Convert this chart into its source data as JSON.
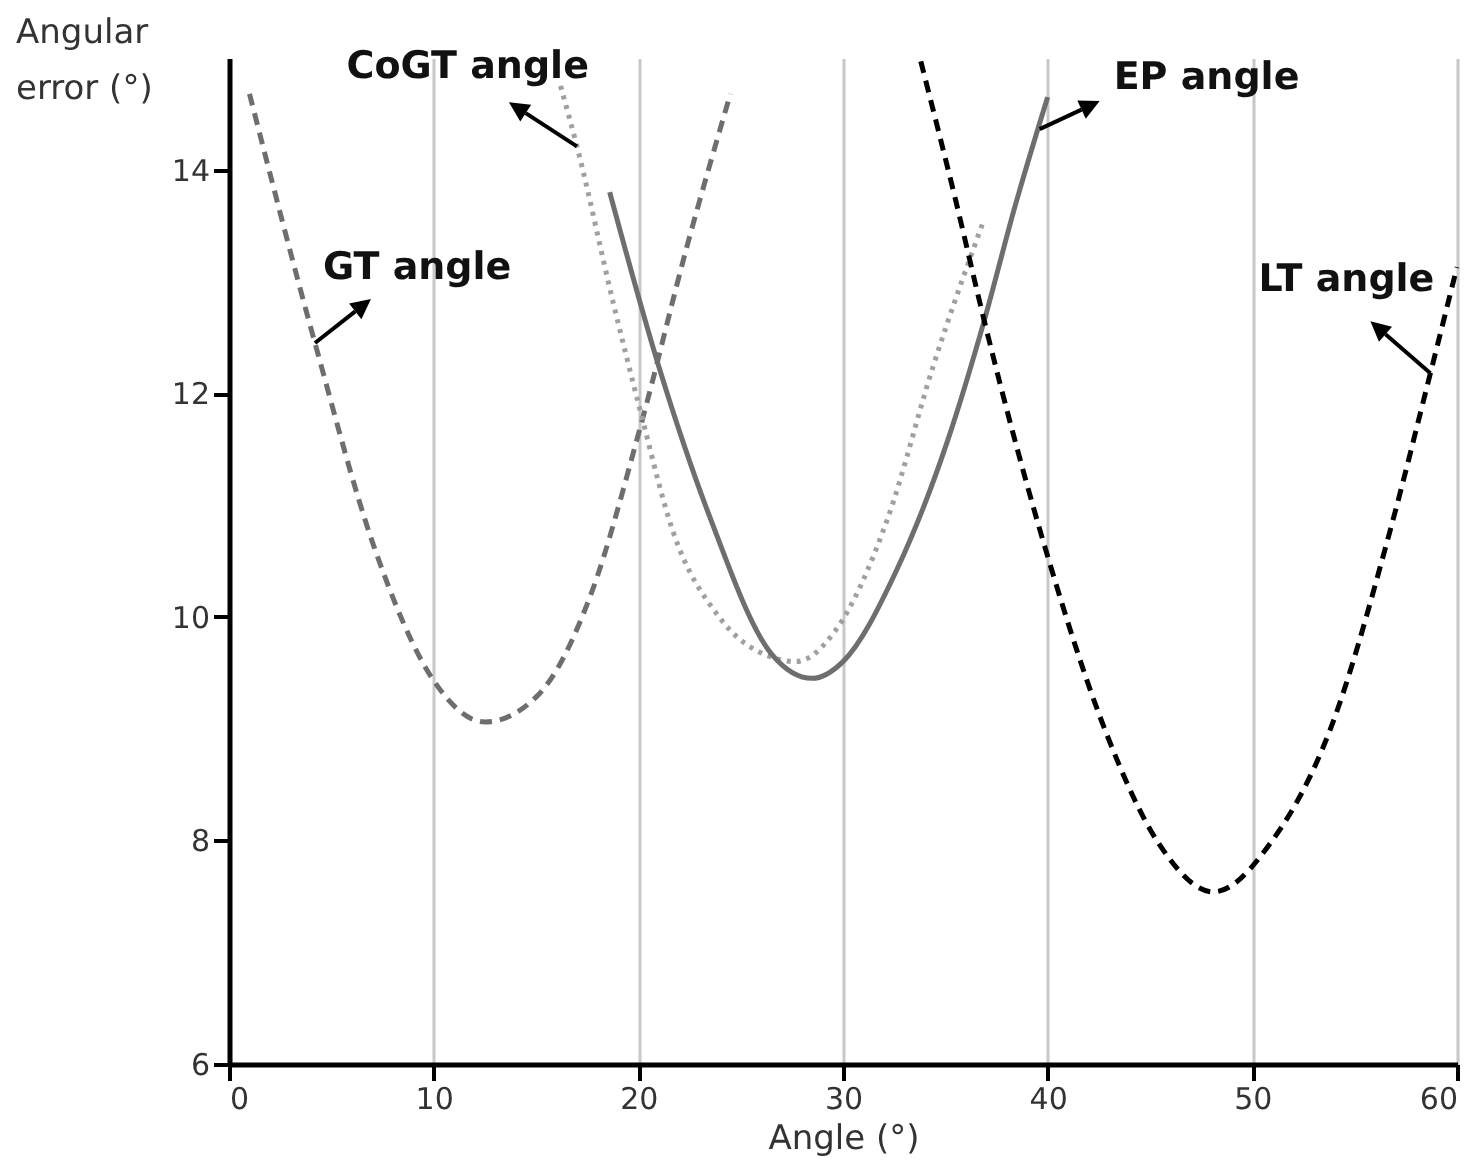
{
  "chart_data": {
    "type": "line",
    "xlabel": "Angle (°)",
    "ylabel": "Angular error (°)",
    "xlim": [
      0,
      60
    ],
    "xticks": [
      0,
      10,
      20,
      30,
      40,
      50,
      60
    ],
    "ylim": [
      6,
      15
    ],
    "yticks": [
      6,
      8,
      10,
      12,
      14
    ],
    "grid": "x",
    "series": [
      {
        "name": "GT angle",
        "color": "#6e6e6e",
        "line_style": "dashed",
        "x": [
          1.0,
          4.2,
          7.1,
          10.0,
          12.5,
          15.1,
          17.7,
          20.1,
          22.4,
          24.5
        ],
        "values": [
          14.68,
          12.45,
          10.62,
          9.43,
          9.06,
          9.3,
          10.21,
          11.7,
          13.33,
          14.68
        ]
      },
      {
        "name": "CoGT angle",
        "color": "#a0a0a0",
        "line_style": "dotted",
        "x": [
          16.2,
          17.0,
          18.8,
          20.1,
          21.7,
          23.9,
          26.5,
          27.7,
          29.6,
          32.2,
          34.4,
          36.9
        ],
        "values": [
          14.75,
          14.21,
          12.79,
          11.84,
          10.76,
          10.01,
          9.64,
          9.6,
          9.87,
          10.89,
          12.24,
          13.56
        ]
      },
      {
        "name": "EP angle",
        "color": "#6e6e6e",
        "line_style": "solid",
        "x": [
          18.6,
          21.0,
          23.5,
          26.5,
          28.5,
          30.0,
          32.6,
          35.1,
          36.9,
          38.4,
          40.0
        ],
        "values": [
          13.8,
          12.24,
          10.89,
          9.67,
          9.45,
          9.6,
          10.41,
          11.57,
          12.65,
          13.67,
          14.65
        ]
      },
      {
        "name": "LT angle",
        "color": "#000000",
        "line_style": "dashed",
        "x": [
          33.8,
          35.5,
          36.9,
          40.1,
          42.8,
          45.4,
          48.1,
          50.9,
          53.8,
          56.7,
          58.7,
          60.0
        ],
        "values": [
          14.97,
          13.73,
          12.65,
          10.48,
          8.99,
          7.98,
          7.54,
          7.98,
          8.99,
          10.75,
          12.18,
          13.13
        ]
      }
    ]
  }
}
